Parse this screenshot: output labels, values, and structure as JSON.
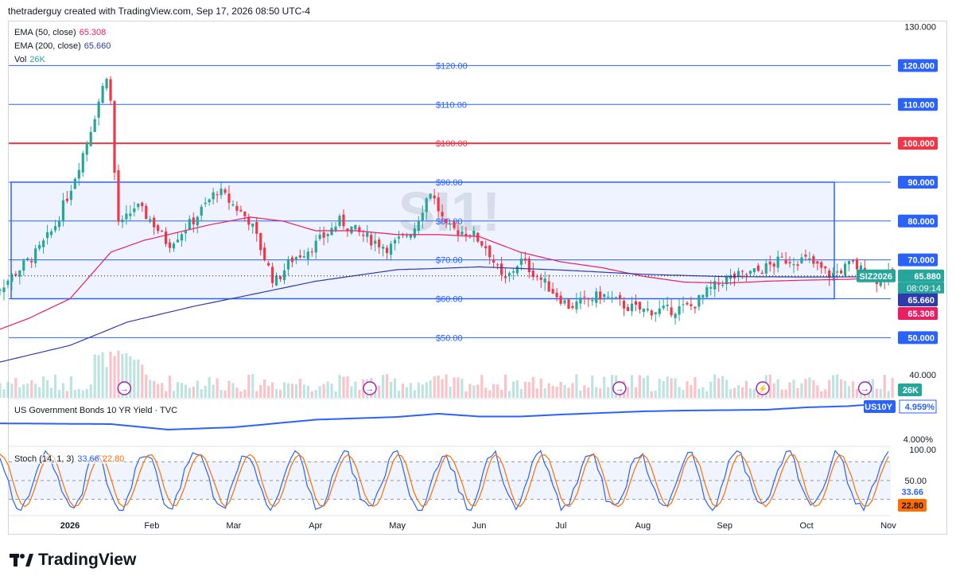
{
  "header": {
    "attribution": "thetraderguy created with TradingView.com, Sep 17, 2026 08:50 UTC-4"
  },
  "watermark": "SI1!",
  "legend": {
    "ema50_label": "EMA (50, close)",
    "ema50_value": "65.308",
    "ema200_label": "EMA (200, close)",
    "ema200_value": "65.660",
    "vol_label": "Vol",
    "vol_value": "26K"
  },
  "bond_panel": {
    "title": "US Government Bonds 10 YR Yield · TVC",
    "symbol": "US10Y",
    "value": "4.959%",
    "axis_label": "4.000%"
  },
  "stoch_panel": {
    "label": "Stoch (14, 1, 3)",
    "k_value": "33.66",
    "d_value": "22.80",
    "axis_labels": [
      "100.00",
      "50.00"
    ]
  },
  "price_axis_labels": [
    "130.000",
    "40.000"
  ],
  "level_tags": [
    {
      "text": "120.000",
      "value": 120,
      "color": "#2962ff"
    },
    {
      "text": "110.000",
      "value": 110,
      "color": "#2962ff"
    },
    {
      "text": "100.000",
      "value": 100,
      "color": "#f23645"
    },
    {
      "text": "90.000",
      "value": 90,
      "color": "#2962ff"
    },
    {
      "text": "80.000",
      "value": 80,
      "color": "#2962ff"
    },
    {
      "text": "70.000",
      "value": 70,
      "color": "#2962ff"
    },
    {
      "text": "60.000",
      "value": 60,
      "color": "#2962ff"
    },
    {
      "text": "50.000",
      "value": 50,
      "color": "#2962ff"
    }
  ],
  "level_labels": [
    "$120.00",
    "$110.00",
    "$100.00",
    "$90.00",
    "$80.00",
    "$70.00",
    "$60.00",
    "$50.00"
  ],
  "price_tags": {
    "symbol": "SIZ2026",
    "last": "65.880",
    "countdown": "08:09:14",
    "ema200": "65.660",
    "ema50": "65.308",
    "volume": "26K",
    "bond": "4.959%",
    "stoch_k": "33.66",
    "stoch_d": "22.80"
  },
  "time_axis": [
    "2026",
    "Feb",
    "Mar",
    "Apr",
    "May",
    "Jun",
    "Jul",
    "Aug",
    "Sep",
    "Oct",
    "Nov"
  ],
  "footer": {
    "brand": "TradingView"
  },
  "colors": {
    "up": "#26a69a",
    "down": "#f23645",
    "ema50": "#e91e63",
    "ema200": "#2f3aad",
    "level": "#2962ff",
    "red_level": "#f23645",
    "bond": "#2962ff",
    "stoch_k": "#2962ff",
    "stoch_d": "#ff6d00"
  },
  "chart_data": {
    "type": "candlestick",
    "symbol": "SIZ2026",
    "ylim": [
      40,
      130
    ],
    "months": [
      "2026",
      "Feb",
      "Mar",
      "Apr",
      "May",
      "Jun",
      "Jul",
      "Aug",
      "Sep",
      "Oct",
      "Nov"
    ],
    "close_path": [
      [
        0,
        61
      ],
      [
        0.2,
        64
      ],
      [
        0.4,
        68
      ],
      [
        0.6,
        72
      ],
      [
        0.8,
        78
      ],
      [
        1.0,
        88
      ],
      [
        1.2,
        100
      ],
      [
        1.45,
        118
      ],
      [
        1.5,
        110
      ],
      [
        1.55,
        90
      ],
      [
        1.6,
        78
      ],
      [
        1.8,
        84
      ],
      [
        2.0,
        80
      ],
      [
        2.2,
        74
      ],
      [
        2.5,
        80
      ],
      [
        2.8,
        88
      ],
      [
        3.0,
        84
      ],
      [
        3.2,
        80
      ],
      [
        3.5,
        64
      ],
      [
        3.7,
        70
      ],
      [
        4.0,
        74
      ],
      [
        4.3,
        80
      ],
      [
        4.6,
        76
      ],
      [
        4.9,
        73
      ],
      [
        5.2,
        78
      ],
      [
        5.4,
        88
      ],
      [
        5.6,
        78
      ],
      [
        5.9,
        77
      ],
      [
        6.1,
        73
      ],
      [
        6.3,
        64
      ],
      [
        6.5,
        70
      ],
      [
        6.8,
        64
      ],
      [
        7.1,
        58
      ],
      [
        7.5,
        61
      ],
      [
        7.8,
        58
      ],
      [
        8.0,
        57
      ],
      [
        8.3,
        57
      ],
      [
        8.6,
        58
      ],
      [
        8.8,
        62
      ],
      [
        9.0,
        65
      ],
      [
        9.4,
        67
      ],
      [
        9.7,
        70
      ],
      [
        10.0,
        70
      ],
      [
        10.3,
        66
      ],
      [
        10.55,
        69
      ],
      [
        10.85,
        65
      ],
      [
        11.05,
        66
      ]
    ],
    "ema50_path": [
      [
        0,
        51
      ],
      [
        0.5,
        55
      ],
      [
        1.0,
        60
      ],
      [
        1.5,
        72
      ],
      [
        1.9,
        75
      ],
      [
        2.3,
        77
      ],
      [
        2.7,
        79
      ],
      [
        3.2,
        81
      ],
      [
        3.6,
        80
      ],
      [
        4.0,
        77.5
      ],
      [
        4.5,
        77.5
      ],
      [
        5.0,
        76.5
      ],
      [
        5.5,
        76.5
      ],
      [
        6.0,
        76
      ],
      [
        6.5,
        72
      ],
      [
        7.0,
        69.5
      ],
      [
        7.5,
        68
      ],
      [
        8.0,
        65.8
      ],
      [
        8.5,
        64.3
      ],
      [
        9.0,
        64
      ],
      [
        9.5,
        64.5
      ],
      [
        10.0,
        64.8
      ],
      [
        10.5,
        65
      ],
      [
        11.0,
        65.3
      ]
    ],
    "ema200_path": [
      [
        0,
        43
      ],
      [
        1.0,
        48
      ],
      [
        1.7,
        54
      ],
      [
        2.5,
        58
      ],
      [
        3.2,
        61
      ],
      [
        4.0,
        64.5
      ],
      [
        5.0,
        67.5
      ],
      [
        5.5,
        67.8
      ],
      [
        6.0,
        68.2
      ],
      [
        7.0,
        67.4
      ],
      [
        8.0,
        66.3
      ],
      [
        9.0,
        65.7
      ],
      [
        10.0,
        65.6
      ],
      [
        11.0,
        65.66
      ]
    ],
    "last_price": 65.88,
    "box": {
      "top": 90,
      "bottom": 60
    },
    "bond_path": [
      [
        0,
        0.46
      ],
      [
        1.5,
        0.44
      ],
      [
        2.2,
        0.3
      ],
      [
        3.0,
        0.36
      ],
      [
        4.0,
        0.55
      ],
      [
        5.0,
        0.62
      ],
      [
        5.5,
        0.7
      ],
      [
        6.0,
        0.63
      ],
      [
        6.5,
        0.63
      ],
      [
        7.0,
        0.68
      ],
      [
        7.5,
        0.72
      ],
      [
        8.0,
        0.76
      ],
      [
        8.5,
        0.78
      ],
      [
        9.0,
        0.79
      ],
      [
        9.5,
        0.8
      ],
      [
        10.0,
        0.86
      ],
      [
        10.5,
        0.89
      ],
      [
        11.0,
        0.96
      ]
    ],
    "stoch_k_last": 33.66,
    "stoch_d_last": 22.8
  }
}
